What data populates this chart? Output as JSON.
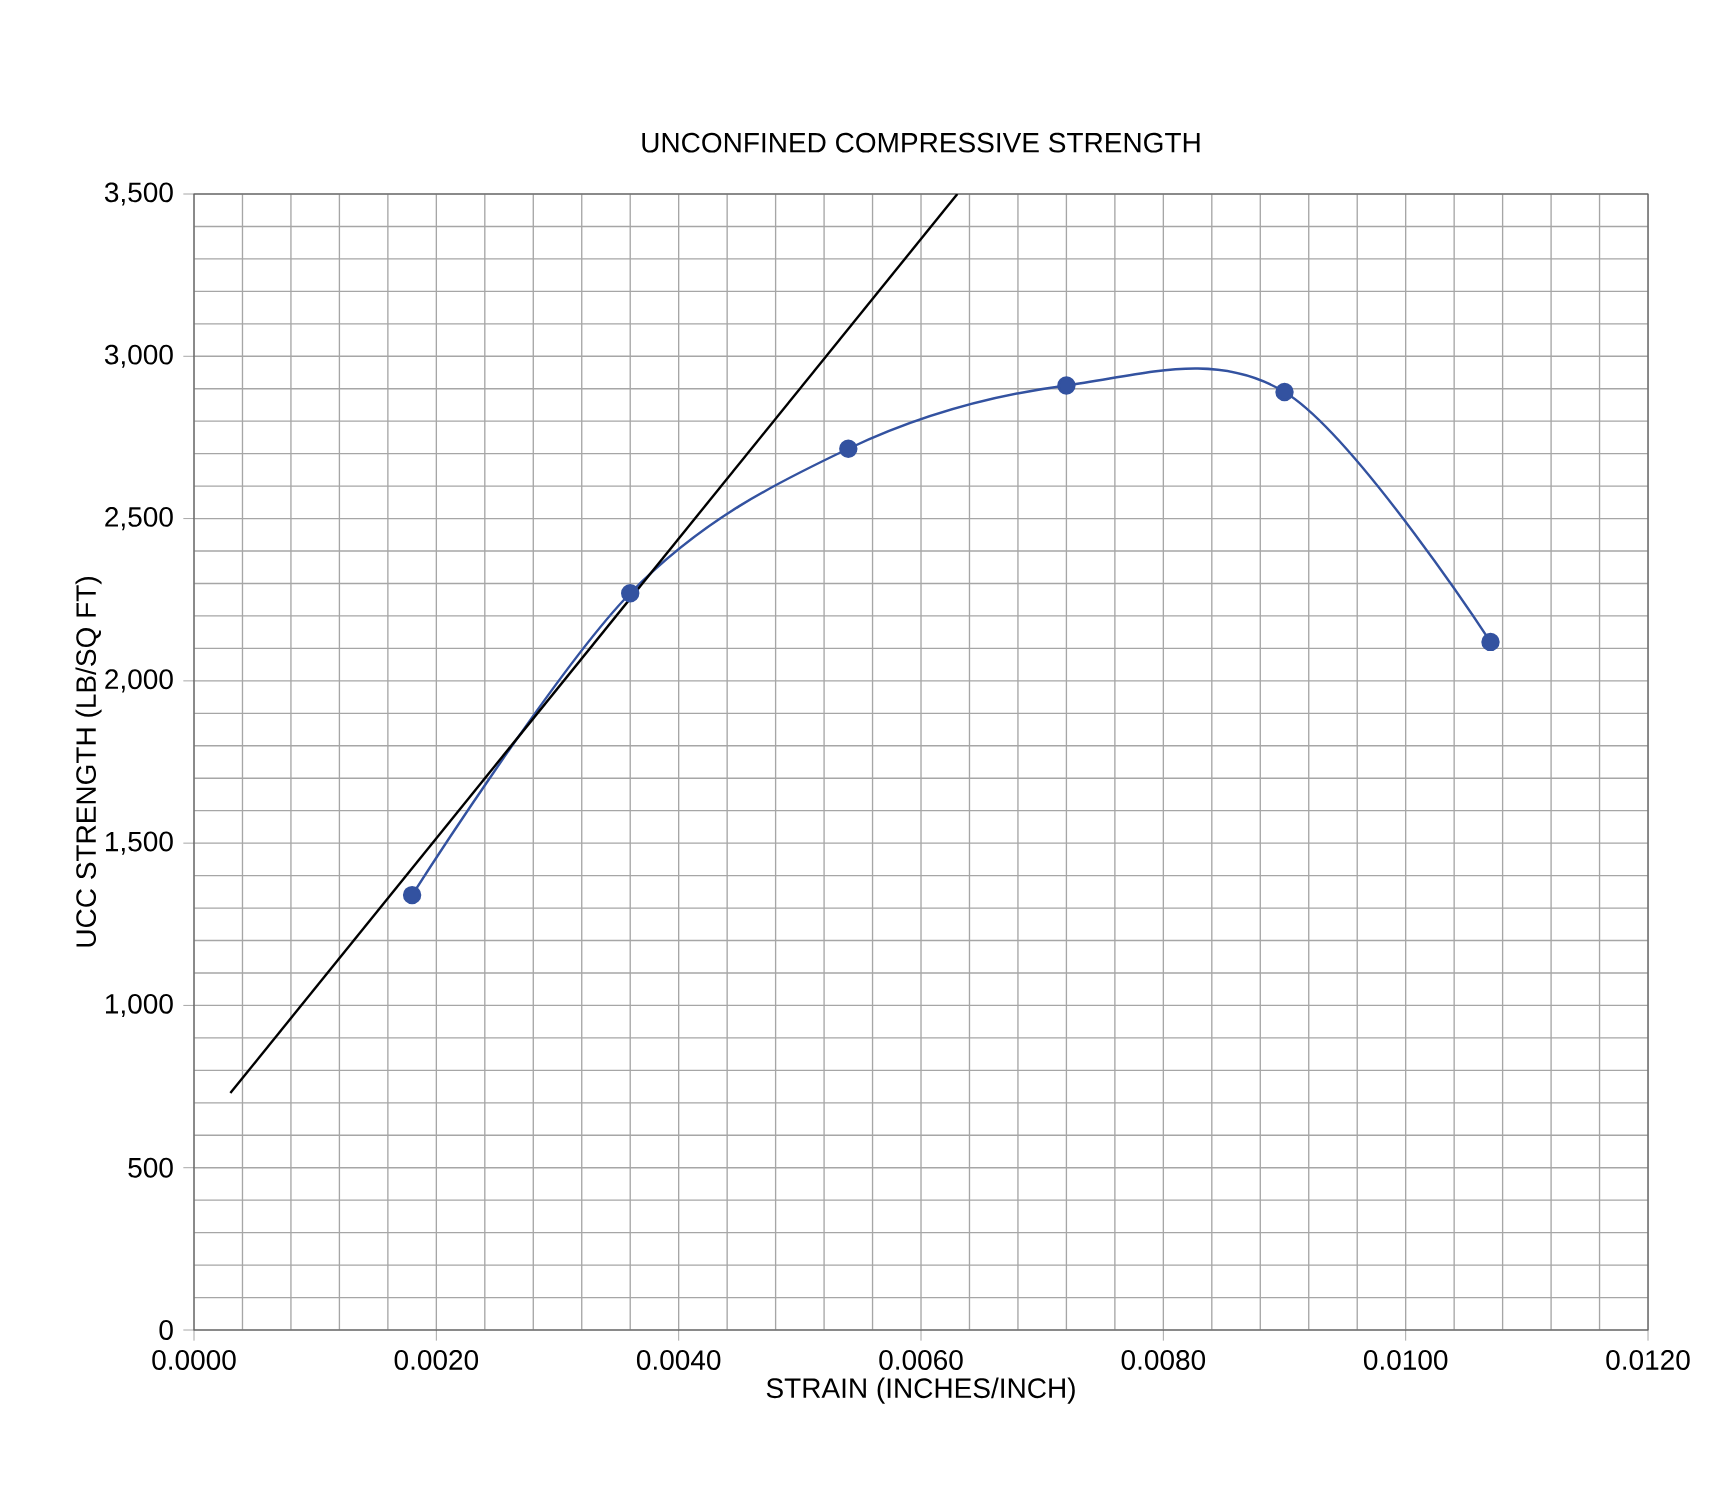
{
  "chart_data": {
    "type": "line",
    "title": "UNCONFINED COMPRESSIVE STRENGTH",
    "xlabel": "STRAIN (INCHES/INCH)",
    "ylabel": "UCC STRENGTH (LB/SQ FT)",
    "series": [
      {
        "color": "#3352a0",
        "marker": "circle",
        "x": [
          0.0018,
          0.0036,
          0.0054,
          0.0072,
          0.009,
          0.0107
        ],
        "values": [
          1340,
          2270,
          2715,
          2910,
          2890,
          2120
        ]
      },
      {
        "color": "#000000",
        "marker": "none",
        "x": [
          0.0003,
          0.0063
        ],
        "values": [
          730,
          3500
        ]
      }
    ],
    "xlim": [
      0,
      0.012
    ],
    "ylim": [
      0,
      3500
    ],
    "xticks": [
      {
        "value": 0,
        "label": "0.0000"
      },
      {
        "value": 0.002,
        "label": "0.0020"
      },
      {
        "value": 0.004,
        "label": "0.0040"
      },
      {
        "value": 0.006,
        "label": "0.0060"
      },
      {
        "value": 0.008,
        "label": "0.0080"
      },
      {
        "value": 0.01,
        "label": "0.0100"
      },
      {
        "value": 0.012,
        "label": "0.0120"
      }
    ],
    "yticks": [
      0,
      500,
      {
        "value": 1000,
        "label": "1,000"
      },
      {
        "value": 1500,
        "label": "1,500"
      },
      {
        "value": 2000,
        "label": "2,000"
      },
      {
        "value": 2500,
        "label": "2,500"
      },
      {
        "value": 3000,
        "label": "3,000"
      },
      {
        "value": 3500,
        "label": "3,500"
      }
    ],
    "grid": true
  }
}
